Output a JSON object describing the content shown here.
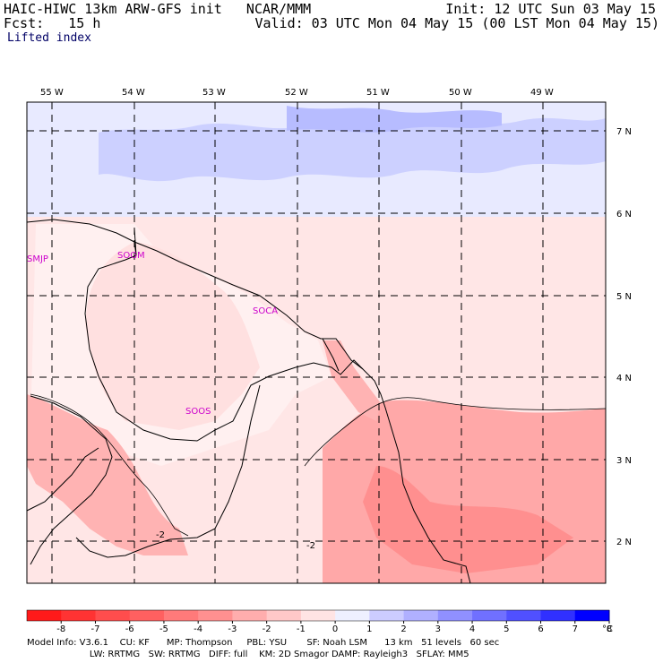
{
  "header": {
    "model_line": "HAIC-HIWC 13km ARW-GFS init   NCAR/MMM",
    "fcst_line": "Fcst:   15 h",
    "field_name": "Lifted index",
    "init_line": "Init: 12 UTC Sun 03 May 15",
    "valid_line": "Valid: 03 UTC Mon 04 May 15 (00 LST Mon 04 May 15)"
  },
  "map": {
    "lon_labels": [
      "55 W",
      "54 W",
      "53 W",
      "52 W",
      "51 W",
      "50 W",
      "49 W"
    ],
    "lat_labels": [
      "7 N",
      "6 N",
      "5 N",
      "4 N",
      "3 N",
      "2 N"
    ],
    "stations": [
      "SMJP",
      "SOGM",
      "SOCA",
      "SOOS"
    ],
    "contour_labels": [
      "-2",
      "-2"
    ]
  },
  "colorbar": {
    "labels": [
      "-8",
      "-7",
      "-6",
      "-5",
      "-4",
      "-3",
      "-2",
      "-1",
      "0",
      "1",
      "2",
      "3",
      "4",
      "5",
      "6",
      "7",
      "8"
    ],
    "unit": "°C",
    "colors": [
      "#ff1a1a",
      "#ff3333",
      "#ff4d4d",
      "#ff6060",
      "#ff7a7a",
      "#ff9090",
      "#ffadad",
      "#ffc8c8",
      "#ffe4e4",
      "#eef0ff",
      "#ccccff",
      "#b0b0ff",
      "#9090ff",
      "#7070ff",
      "#5050ff",
      "#3030ff",
      "#0000ff"
    ]
  },
  "footer": {
    "line1": "Model Info: V3.6.1    CU: KF      MP: Thompson     PBL: YSU       SF: Noah LSM      13 km   51 levels   60 sec",
    "line2": "                      LW: RRTMG   SW: RRTMG   DIFF: full    KM: 2D Smagor DAMP: Rayleigh3   SFLAY: MM5"
  }
}
